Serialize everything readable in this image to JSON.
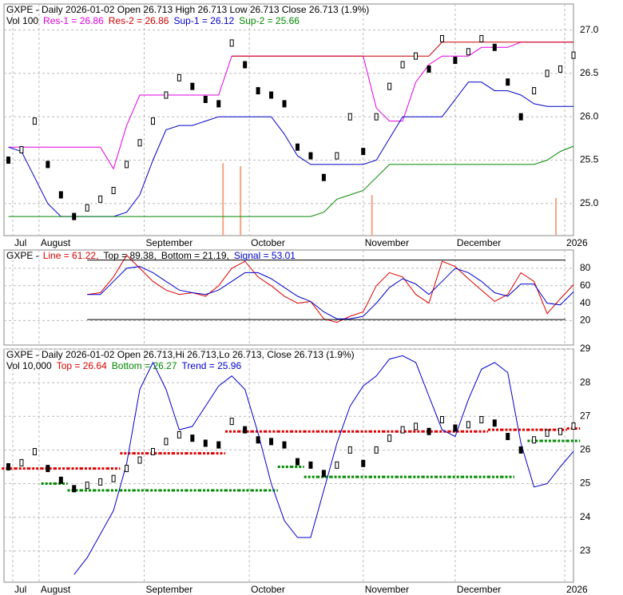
{
  "chart_data": [
    {
      "type": "ohlc",
      "title": "GXPE - Daily 2026-01-02 Open 26.713  High 26.713  Low 26.713  Close 26.713 (1.9%)",
      "volume_label": "Vol 100",
      "x": [
        1,
        4,
        7,
        10,
        13,
        16,
        19,
        22,
        25,
        28,
        31,
        34,
        37,
        40,
        43,
        46,
        49,
        52,
        55,
        58,
        61,
        64,
        67,
        70,
        73,
        76,
        79,
        82,
        85,
        88,
        91,
        94,
        97,
        100,
        103,
        106,
        109,
        112,
        115,
        118,
        121,
        124,
        127,
        130
      ],
      "xlim": [
        0,
        130
      ],
      "xticks": [
        {
          "value": 2,
          "label": "Jul"
        },
        {
          "value": 8,
          "label": "August"
        },
        {
          "value": 32,
          "label": "September"
        },
        {
          "value": 56,
          "label": "October"
        },
        {
          "value": 82,
          "label": "November"
        },
        {
          "value": 103,
          "label": "December"
        },
        {
          "value": 128,
          "label": "2026"
        }
      ],
      "ylim": [
        24.63,
        27.3
      ],
      "yticks": [
        {
          "value": 25,
          "label": "25.0"
        },
        {
          "value": 25.5,
          "label": "25.5"
        },
        {
          "value": 26,
          "label": "26.0"
        },
        {
          "value": 26.5,
          "label": "26.5"
        },
        {
          "value": 27,
          "label": "27.0"
        }
      ],
      "values": [
        25.5,
        25.62,
        25.95,
        25.45,
        25.1,
        24.85,
        24.95,
        25.05,
        25.15,
        25.45,
        25.7,
        25.95,
        26.25,
        26.45,
        26.35,
        26.2,
        26.15,
        26.85,
        26.6,
        26.3,
        26.25,
        26.15,
        25.65,
        25.55,
        25.3,
        25.55,
        26.0,
        25.6,
        26.0,
        26.35,
        26.6,
        26.7,
        26.55,
        26.9,
        26.65,
        26.75,
        26.9,
        26.8,
        26.4,
        26.0,
        26.3,
        26.5,
        26.55,
        26.71
      ],
      "volume": {
        "x": [
          50,
          54,
          84,
          126
        ],
        "values": [
          2500,
          2400,
          1400,
          1300
        ],
        "vlim": [
          0,
          4000
        ],
        "color": "#f4a582"
      },
      "series": [
        {
          "name": "Res-1 = 26.86",
          "color": "#e000e0",
          "style": "line",
          "values": [
            25.65,
            25.65,
            25.65,
            25.65,
            25.65,
            25.65,
            25.65,
            25.65,
            25.4,
            25.9,
            26.25,
            26.25,
            26.25,
            26.25,
            26.25,
            26.25,
            26.25,
            26.7,
            26.7,
            26.7,
            26.7,
            26.7,
            26.7,
            26.7,
            26.7,
            26.7,
            26.7,
            26.7,
            26.1,
            25.95,
            25.95,
            26.4,
            26.6,
            26.7,
            26.7,
            26.7,
            26.8,
            26.8,
            26.8,
            26.86,
            26.86,
            26.86,
            26.86,
            26.86
          ]
        },
        {
          "name": "Res-2 = 26.86",
          "color": "#cc0000",
          "style": "line",
          "values": [
            null,
            null,
            null,
            null,
            null,
            null,
            null,
            null,
            null,
            null,
            null,
            null,
            null,
            null,
            null,
            null,
            null,
            26.7,
            26.7,
            26.7,
            26.7,
            26.7,
            26.7,
            26.7,
            26.7,
            26.7,
            26.7,
            26.7,
            26.7,
            26.7,
            26.7,
            26.7,
            26.7,
            26.86,
            26.86,
            26.86,
            26.86,
            26.86,
            26.86,
            26.86,
            26.86,
            26.86,
            26.86,
            26.86
          ]
        },
        {
          "name": "Sup-1 = 26.12",
          "color": "#0000cc",
          "style": "line",
          "values": [
            25.65,
            25.6,
            25.3,
            25.0,
            24.85,
            24.85,
            24.85,
            24.85,
            24.85,
            24.9,
            25.1,
            25.5,
            25.85,
            25.9,
            25.9,
            25.95,
            26.0,
            26.0,
            26.0,
            26.0,
            26.0,
            25.8,
            25.55,
            25.45,
            25.45,
            25.45,
            25.45,
            25.45,
            25.5,
            25.75,
            26.0,
            26.0,
            26.0,
            26.0,
            26.2,
            26.4,
            26.4,
            26.3,
            26.3,
            26.25,
            26.15,
            26.12,
            26.12,
            26.12
          ]
        },
        {
          "name": "Sup-2 = 25.66",
          "color": "#008800",
          "style": "line",
          "values": [
            24.85,
            24.85,
            24.85,
            24.85,
            24.85,
            24.85,
            24.85,
            24.85,
            24.85,
            24.85,
            24.85,
            24.85,
            24.85,
            24.85,
            24.85,
            24.85,
            24.85,
            24.85,
            24.85,
            24.85,
            24.85,
            24.85,
            24.85,
            24.85,
            24.9,
            25.05,
            25.1,
            25.15,
            25.3,
            25.45,
            25.45,
            25.45,
            25.45,
            25.45,
            25.45,
            25.45,
            25.45,
            25.45,
            25.45,
            25.45,
            25.45,
            25.5,
            25.6,
            25.66
          ]
        }
      ]
    },
    {
      "type": "line",
      "title": "GXPE -",
      "x": [
        1,
        4,
        7,
        10,
        13,
        16,
        19,
        22,
        25,
        28,
        31,
        34,
        37,
        40,
        43,
        46,
        49,
        52,
        55,
        58,
        61,
        64,
        67,
        70,
        73,
        76,
        79,
        82,
        85,
        88,
        91,
        94,
        97,
        100,
        103,
        106,
        109,
        112,
        115,
        118,
        121,
        124,
        127,
        130
      ],
      "xlim": [
        0,
        130
      ],
      "xticks": [
        2,
        8,
        32,
        56,
        82,
        103,
        128
      ],
      "ylim": [
        -8,
        101
      ],
      "yticks": [
        20,
        40,
        60,
        80
      ],
      "series": [
        {
          "name": "Line = 61.22,",
          "color": "#dd0000",
          "style": "line",
          "values": [
            null,
            null,
            null,
            null,
            null,
            null,
            50,
            52,
            70,
            95,
            80,
            65,
            55,
            50,
            52,
            48,
            60,
            80,
            88,
            70,
            60,
            48,
            40,
            42,
            22,
            18,
            25,
            30,
            60,
            75,
            70,
            50,
            40,
            88,
            82,
            68,
            55,
            42,
            50,
            75,
            65,
            28,
            45,
            61.22
          ]
        },
        {
          "name": "Top = 89.38,",
          "color": "#000000",
          "style": "level",
          "level": 89.38
        },
        {
          "name": "Bottom = 21.19,",
          "color": "#000000",
          "style": "level",
          "level": 21.19
        },
        {
          "name": "Signal = 53.01",
          "color": "#0000cc",
          "style": "line",
          "values": [
            null,
            null,
            null,
            null,
            null,
            null,
            50,
            50,
            65,
            80,
            82,
            75,
            65,
            55,
            52,
            50,
            55,
            65,
            75,
            75,
            68,
            58,
            48,
            42,
            30,
            22,
            22,
            25,
            40,
            58,
            68,
            62,
            50,
            65,
            80,
            75,
            65,
            52,
            48,
            62,
            62,
            40,
            38,
            53.01
          ]
        }
      ]
    },
    {
      "type": "ohlc",
      "title": "GXPE - Daily 2026-01-02 Open 26.713,Hi 26.713,Lo 26.713, Close 26.713 (1.9%)",
      "volume_label": "Vol 10,000",
      "x": [
        1,
        4,
        7,
        10,
        13,
        16,
        19,
        22,
        25,
        28,
        31,
        34,
        37,
        40,
        43,
        46,
        49,
        52,
        55,
        58,
        61,
        64,
        67,
        70,
        73,
        76,
        79,
        82,
        85,
        88,
        91,
        94,
        97,
        100,
        103,
        106,
        109,
        112,
        115,
        118,
        121,
        124,
        127,
        130
      ],
      "xlim": [
        0,
        130
      ],
      "xticks": [
        {
          "value": 2,
          "label": "Jul"
        },
        {
          "value": 8,
          "label": "August"
        },
        {
          "value": 32,
          "label": "September"
        },
        {
          "value": 56,
          "label": "October"
        },
        {
          "value": 82,
          "label": "November"
        },
        {
          "value": 103,
          "label": "December"
        },
        {
          "value": 128,
          "label": "2026"
        }
      ],
      "ylim": [
        22.07,
        29
      ],
      "yticks": [
        23,
        24,
        25,
        26,
        27,
        28,
        29
      ],
      "values": [
        25.5,
        25.62,
        25.95,
        25.45,
        25.1,
        24.85,
        24.95,
        25.05,
        25.15,
        25.45,
        25.7,
        25.95,
        26.25,
        26.45,
        26.35,
        26.2,
        26.15,
        26.85,
        26.6,
        26.3,
        26.25,
        26.15,
        25.65,
        25.55,
        25.3,
        25.55,
        26.0,
        25.6,
        26.0,
        26.35,
        26.6,
        26.7,
        26.55,
        26.9,
        26.65,
        26.75,
        26.9,
        26.8,
        26.4,
        26.0,
        26.3,
        26.5,
        26.55,
        26.71
      ],
      "series": [
        {
          "name": "Top = 26.64",
          "color": "#dd0000",
          "style": "dash",
          "values": [
            25.45,
            25.45,
            25.45,
            25.45,
            25.45,
            25.45,
            25.45,
            25.45,
            25.45,
            25.9,
            25.9,
            25.9,
            25.9,
            25.9,
            25.9,
            25.9,
            25.9,
            26.55,
            26.55,
            26.55,
            26.55,
            26.55,
            26.55,
            26.55,
            26.55,
            26.55,
            26.55,
            26.55,
            26.55,
            26.55,
            26.55,
            26.55,
            26.55,
            26.55,
            26.55,
            26.55,
            26.55,
            26.6,
            26.6,
            26.6,
            26.6,
            26.6,
            26.6,
            26.64
          ]
        },
        {
          "name": "Bottom = 26.27",
          "color": "#008800",
          "style": "dash",
          "values": [
            null,
            null,
            null,
            25.0,
            25.0,
            24.8,
            24.8,
            24.8,
            24.8,
            24.8,
            24.8,
            24.8,
            24.8,
            24.8,
            24.8,
            24.8,
            24.8,
            24.8,
            24.8,
            24.8,
            24.8,
            25.5,
            25.5,
            25.2,
            25.2,
            25.2,
            25.2,
            25.2,
            25.2,
            25.2,
            25.2,
            25.2,
            25.2,
            25.2,
            25.2,
            25.2,
            25.2,
            25.2,
            25.2,
            null,
            26.27,
            26.27,
            26.27,
            26.27
          ]
        },
        {
          "name": "Trend = 25.96",
          "color": "#0000cc",
          "style": "line",
          "values": [
            null,
            null,
            null,
            null,
            null,
            22.3,
            22.8,
            23.5,
            24.2,
            25.6,
            27.8,
            28.6,
            27.8,
            26.6,
            26.7,
            27.3,
            27.9,
            28.2,
            27.8,
            26.5,
            25.0,
            23.9,
            23.4,
            23.4,
            24.8,
            26.2,
            27.3,
            27.9,
            28.2,
            28.7,
            28.8,
            28.6,
            27.6,
            26.6,
            26.4,
            27.5,
            28.4,
            28.6,
            28.3,
            26.2,
            24.9,
            25.0,
            25.5,
            25.96
          ]
        }
      ]
    }
  ]
}
